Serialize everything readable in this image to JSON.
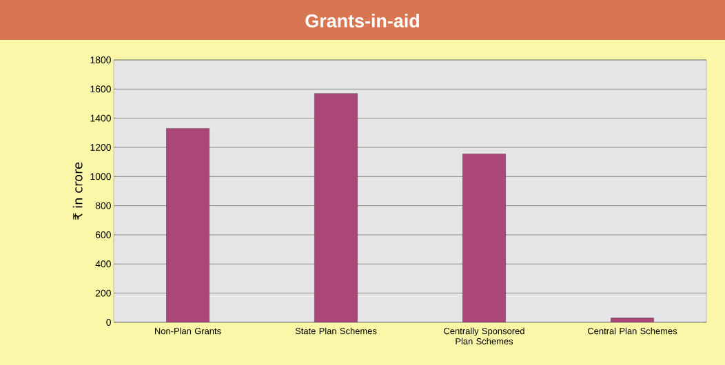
{
  "chart_data": {
    "type": "bar",
    "title": "Grants-in-aid",
    "ylabel": "₹ in crore",
    "categories": [
      "Non-Plan Grants",
      "State Plan Schemes",
      "Centrally Sponsored Plan Schemes",
      "Central Plan Schemes"
    ],
    "values": [
      1330,
      1570,
      1155,
      30
    ],
    "color": "#aa4778",
    "ylim": [
      0,
      1800
    ],
    "yticks": [
      0,
      200,
      400,
      600,
      800,
      1000,
      1200,
      1400,
      1600,
      1800
    ],
    "grid": "y"
  }
}
